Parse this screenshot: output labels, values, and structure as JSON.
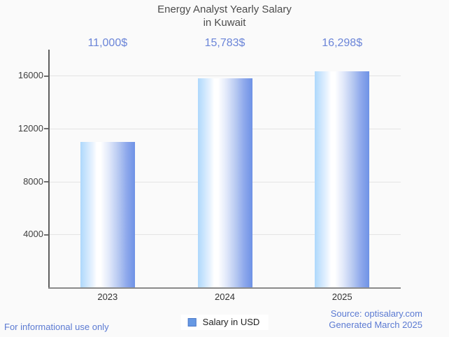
{
  "title": {
    "line1": "Energy Analyst Yearly Salary",
    "line2": "in Kuwait"
  },
  "chart_data": {
    "type": "bar",
    "title": "Energy Analyst Yearly Salary in Kuwait",
    "categories": [
      "2023",
      "2024",
      "2025"
    ],
    "series": [
      {
        "name": "Salary in USD",
        "values": [
          11000,
          15783,
          16298
        ],
        "value_labels": [
          "11,000$",
          "15,783$",
          "16,298$"
        ]
      }
    ],
    "xlabel": "",
    "ylabel": "",
    "ylim": [
      0,
      18000
    ],
    "yticks": [
      4000,
      8000,
      12000,
      16000
    ],
    "grid": true,
    "legend_position": "bottom"
  },
  "legend": {
    "label": "Salary in USD"
  },
  "footer": {
    "left": "For informational use only",
    "source": "Source: optisalary.com",
    "generated": "Generated March 2025"
  },
  "colors": {
    "background": "#fafafa",
    "value_label_blue": "#6b85d8",
    "footer_blue": "#5b7ad2",
    "bar_gradient_left": "#aed8fc",
    "bar_gradient_mid": "#ffffff",
    "bar_gradient_right": "#6e92e6",
    "legend_swatch_fill": "#6699e4",
    "legend_swatch_border": "#4b79c8",
    "gridline": "#e4e4e4",
    "title_text": "#4c4c4c"
  }
}
